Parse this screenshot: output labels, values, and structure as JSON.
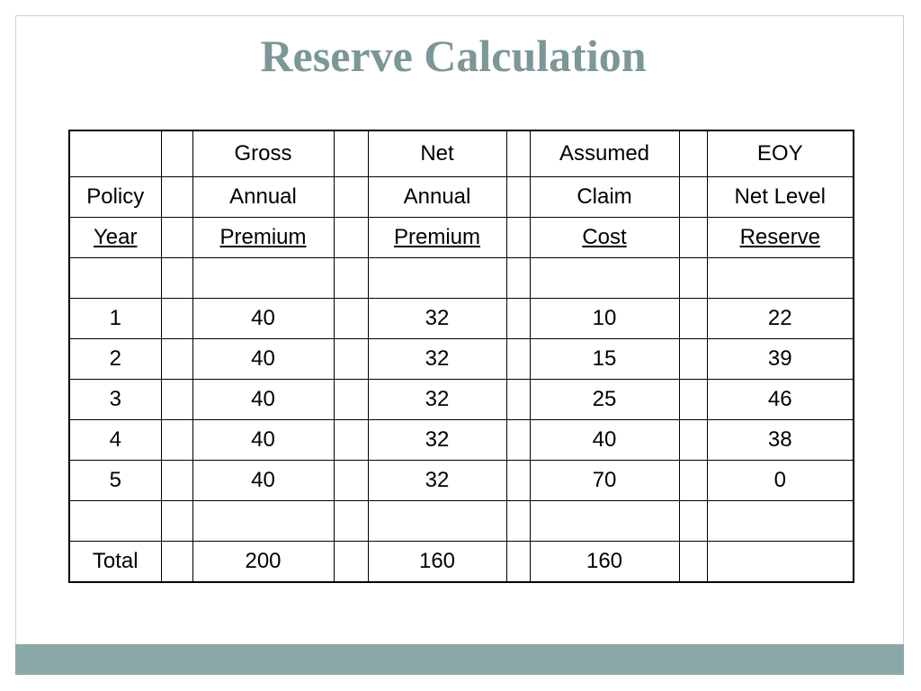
{
  "slide": {
    "title": "Reserve Calculation",
    "colors": {
      "title": "#7c9797",
      "bottom_bar": "#8aa8a8",
      "frame_border": "#c9d3d3"
    }
  },
  "table": {
    "header": [
      [
        "",
        "Gross",
        "Net",
        "Assumed",
        "EOY"
      ],
      [
        "Policy",
        "Annual",
        "Annual",
        "Claim",
        "Net Level"
      ],
      [
        "Year",
        "Premium",
        "Premium",
        "Cost",
        "Reserve"
      ]
    ],
    "rows": [
      [
        "1",
        "40",
        "32",
        "10",
        "22"
      ],
      [
        "2",
        "40",
        "32",
        "15",
        "39"
      ],
      [
        "3",
        "40",
        "32",
        "25",
        "46"
      ],
      [
        "4",
        "40",
        "32",
        "40",
        "38"
      ],
      [
        "5",
        "40",
        "32",
        "70",
        "0"
      ]
    ],
    "total": [
      "Total",
      "200",
      "160",
      "160",
      ""
    ]
  }
}
